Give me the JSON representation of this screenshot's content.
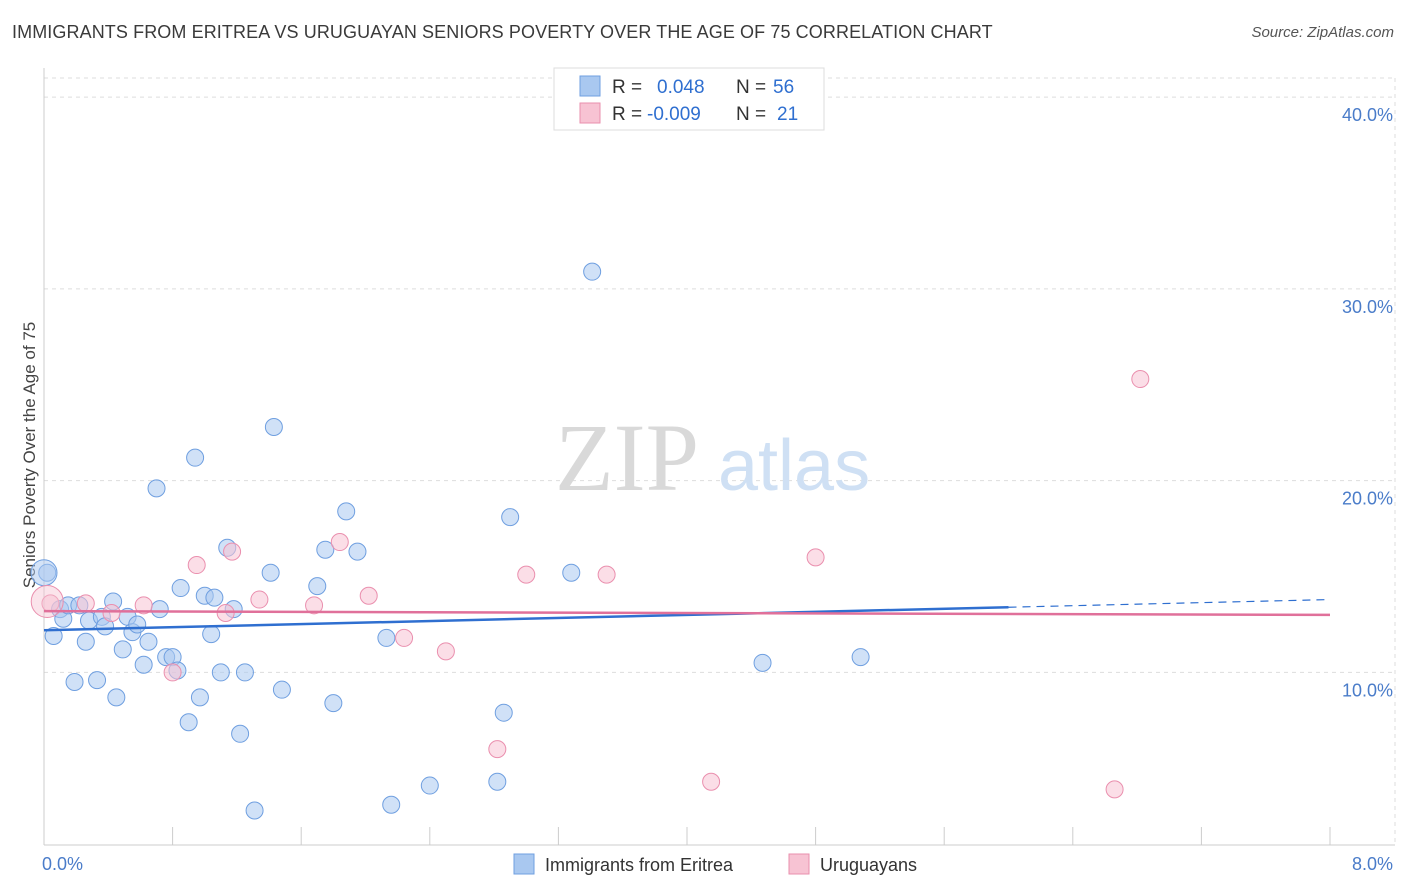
{
  "title": "IMMIGRANTS FROM ERITREA VS URUGUAYAN SENIORS POVERTY OVER THE AGE OF 75 CORRELATION CHART",
  "source": "Source: ZipAtlas.com",
  "watermark": {
    "zip": "ZIP",
    "atlas": "atlas"
  },
  "chart_data": {
    "type": "scatter",
    "title": "IMMIGRANTS FROM ERITREA VS URUGUAYAN SENIORS POVERTY OVER THE AGE OF 75 CORRELATION CHART",
    "xlabel": "",
    "ylabel": "Seniors Poverty Over the Age of 75",
    "xlim": [
      0,
      8
    ],
    "ylim": [
      1,
      41
    ],
    "x_tick_labels": [
      "0.0%",
      "8.0%"
    ],
    "y_ticks": [
      10,
      20,
      30,
      40
    ],
    "y_tick_labels": [
      "10.0%",
      "20.0%",
      "30.0%",
      "40.0%"
    ],
    "grid": true,
    "legend_position": "top-center",
    "series": [
      {
        "name": "Immigrants from Eritrea",
        "color": "#a9c8f0",
        "stroke": "#6f9fe0",
        "line_color": "#2f6fd0",
        "R": "0.048",
        "N": "56",
        "trend": {
          "x": [
            0,
            6.0
          ],
          "y": [
            12.2,
            13.4
          ],
          "dash_to": [
            8.0,
            13.8
          ]
        },
        "points": [
          [
            0.02,
            15.2
          ],
          [
            0.06,
            11.9
          ],
          [
            0.1,
            13.3
          ],
          [
            0.12,
            12.8
          ],
          [
            0.15,
            13.5
          ],
          [
            0.19,
            9.5
          ],
          [
            0.22,
            13.5
          ],
          [
            0.26,
            11.6
          ],
          [
            0.28,
            12.7
          ],
          [
            0.33,
            9.6
          ],
          [
            0.36,
            12.9
          ],
          [
            0.38,
            12.4
          ],
          [
            0.43,
            13.7
          ],
          [
            0.45,
            8.7
          ],
          [
            0.49,
            11.2
          ],
          [
            0.52,
            12.9
          ],
          [
            0.55,
            12.1
          ],
          [
            0.58,
            12.5
          ],
          [
            0.62,
            10.4
          ],
          [
            0.65,
            11.6
          ],
          [
            0.7,
            19.6
          ],
          [
            0.72,
            13.3
          ],
          [
            0.76,
            10.8
          ],
          [
            0.8,
            10.8
          ],
          [
            0.83,
            10.1
          ],
          [
            0.85,
            14.4
          ],
          [
            0.9,
            7.4
          ],
          [
            0.94,
            21.2
          ],
          [
            0.97,
            8.7
          ],
          [
            1.0,
            14.0
          ],
          [
            1.04,
            12.0
          ],
          [
            1.06,
            13.9
          ],
          [
            1.1,
            10.0
          ],
          [
            1.14,
            16.5
          ],
          [
            1.18,
            13.3
          ],
          [
            1.22,
            6.8
          ],
          [
            1.25,
            10.0
          ],
          [
            1.31,
            2.8
          ],
          [
            1.41,
            15.2
          ],
          [
            1.43,
            22.8
          ],
          [
            1.48,
            9.1
          ],
          [
            1.7,
            14.5
          ],
          [
            1.75,
            16.4
          ],
          [
            1.8,
            8.4
          ],
          [
            1.88,
            18.4
          ],
          [
            1.95,
            16.3
          ],
          [
            2.13,
            11.8
          ],
          [
            2.16,
            3.1
          ],
          [
            2.4,
            4.1
          ],
          [
            2.82,
            4.3
          ],
          [
            2.86,
            7.9
          ],
          [
            2.9,
            18.1
          ],
          [
            3.28,
            15.2
          ],
          [
            3.41,
            30.9
          ],
          [
            4.47,
            10.5
          ],
          [
            5.08,
            10.8
          ]
        ]
      },
      {
        "name": "Uruguayans",
        "color": "#f7c3d3",
        "stroke": "#ea8fae",
        "line_color": "#e0709a",
        "R": "-0.009",
        "N": "21",
        "trend": {
          "x": [
            0,
            8.0
          ],
          "y": [
            13.2,
            13.0
          ]
        },
        "points": [
          [
            0.04,
            13.6
          ],
          [
            0.26,
            13.6
          ],
          [
            0.42,
            13.1
          ],
          [
            0.62,
            13.5
          ],
          [
            0.8,
            10.0
          ],
          [
            0.95,
            15.6
          ],
          [
            1.13,
            13.1
          ],
          [
            1.17,
            16.3
          ],
          [
            1.34,
            13.8
          ],
          [
            1.68,
            13.5
          ],
          [
            1.84,
            16.8
          ],
          [
            2.02,
            14.0
          ],
          [
            2.24,
            11.8
          ],
          [
            2.5,
            11.1
          ],
          [
            2.82,
            6.0
          ],
          [
            3.0,
            15.1
          ],
          [
            3.5,
            15.1
          ],
          [
            4.15,
            4.3
          ],
          [
            4.8,
            16.0
          ],
          [
            6.66,
            3.9
          ],
          [
            6.82,
            25.3
          ]
        ]
      }
    ]
  },
  "legend": {
    "r_label": "R =",
    "n_label": "N ="
  }
}
